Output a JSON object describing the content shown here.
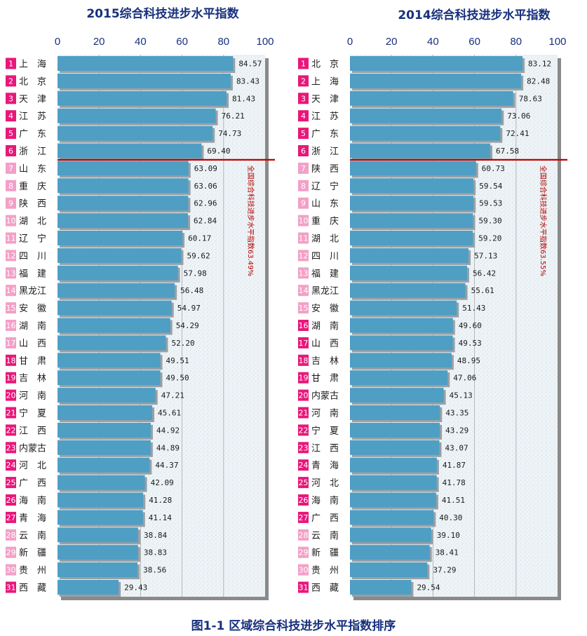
{
  "figure_caption": "图1-1  区域综合科技进步水平指数排序",
  "chart_data": [
    {
      "type": "bar",
      "title": "2015综合科技进步水平指数",
      "xlim": [
        0,
        100
      ],
      "ticks": [
        0,
        20,
        40,
        60,
        80,
        100
      ],
      "ranks": [
        1,
        2,
        3,
        4,
        5,
        6,
        7,
        8,
        9,
        10,
        11,
        12,
        13,
        14,
        15,
        16,
        17,
        18,
        19,
        20,
        21,
        22,
        23,
        24,
        25,
        26,
        27,
        28,
        29,
        30,
        31
      ],
      "categories": [
        "上　海",
        "北　京",
        "天　津",
        "江　苏",
        "广　东",
        "浙　江",
        "山　东",
        "重　庆",
        "陕　西",
        "湖　北",
        "辽　宁",
        "四　川",
        "福　建",
        "黑龙江",
        "安　徽",
        "湖　南",
        "山　西",
        "甘　肃",
        "吉　林",
        "河　南",
        "宁　夏",
        "江　西",
        "内蒙古",
        "河　北",
        "广　西",
        "海　南",
        "青　海",
        "云　南",
        "新　疆",
        "贵　州",
        "西　藏"
      ],
      "values": [
        84.57,
        83.43,
        81.43,
        76.21,
        74.73,
        69.4,
        63.09,
        63.06,
        62.96,
        62.84,
        60.17,
        59.62,
        57.98,
        56.48,
        54.97,
        54.29,
        52.2,
        49.51,
        49.5,
        47.21,
        45.61,
        44.92,
        44.89,
        44.37,
        42.09,
        41.28,
        41.14,
        38.84,
        38.83,
        38.56,
        29.43
      ],
      "value_labels": [
        "84.57",
        "83.43",
        "81.43",
        "76.21",
        "74.73",
        "69.40",
        "63.09",
        "63.06",
        "62.96",
        "62.84",
        "60.17",
        "59.62",
        "57.98",
        "56.48",
        "54.97",
        "54.29",
        "52.20",
        "49.51",
        "49.50",
        "47.21",
        "45.61",
        "44.92",
        "44.89",
        "44.37",
        "42.09",
        "41.28",
        "41.14",
        "38.84",
        "38.83",
        "38.56",
        "29.43"
      ],
      "badge_colors": [
        "#e8177a",
        "#e8177a",
        "#e8177a",
        "#e8177a",
        "#e8177a",
        "#e8177a",
        "#f3a0c8",
        "#f3a0c8",
        "#f3a0c8",
        "#f3a0c8",
        "#f3a0c8",
        "#f3a0c8",
        "#f3a0c8",
        "#f3a0c8",
        "#f3a0c8",
        "#f3a0c8",
        "#f3a0c8",
        "#e8177a",
        "#e8177a",
        "#e8177a",
        "#e8177a",
        "#e8177a",
        "#e8177a",
        "#e8177a",
        "#e8177a",
        "#e8177a",
        "#e8177a",
        "#f3a0c8",
        "#f3a0c8",
        "#f3a0c8",
        "#e8177a"
      ],
      "threshold_after_rank": 6,
      "annotation": "全国综合科技进步水平指数63.49%",
      "grid": true,
      "bar_color": "#4f9ec4"
    },
    {
      "type": "bar",
      "title": "2014综合科技进步水平指数",
      "xlim": [
        0,
        100
      ],
      "ticks": [
        0,
        20,
        40,
        60,
        80,
        100
      ],
      "ranks": [
        1,
        2,
        3,
        4,
        5,
        6,
        7,
        8,
        9,
        10,
        11,
        12,
        13,
        14,
        15,
        16,
        17,
        18,
        19,
        20,
        21,
        22,
        23,
        24,
        25,
        26,
        27,
        28,
        29,
        30,
        31
      ],
      "categories": [
        "北　京",
        "上　海",
        "天　津",
        "江　苏",
        "广　东",
        "浙　江",
        "陕　西",
        "辽　宁",
        "山　东",
        "重　庆",
        "湖　北",
        "四　川",
        "福　建",
        "黑龙江",
        "安　徽",
        "湖　南",
        "山　西",
        "吉　林",
        "甘　肃",
        "内蒙古",
        "河　南",
        "宁　夏",
        "江　西",
        "青　海",
        "河　北",
        "海　南",
        "广　西",
        "云　南",
        "新　疆",
        "贵　州",
        "西　藏"
      ],
      "values": [
        83.12,
        82.48,
        78.63,
        73.06,
        72.41,
        67.58,
        60.73,
        59.54,
        59.53,
        59.3,
        59.2,
        57.13,
        56.42,
        55.61,
        51.43,
        49.6,
        49.53,
        48.95,
        47.06,
        45.13,
        43.35,
        43.29,
        43.07,
        41.87,
        41.78,
        41.51,
        40.3,
        39.1,
        38.41,
        37.29,
        29.54
      ],
      "value_labels": [
        "83.12",
        "82.48",
        "78.63",
        "73.06",
        "72.41",
        "67.58",
        "60.73",
        "59.54",
        "59.53",
        "59.30",
        "59.20",
        "57.13",
        "56.42",
        "55.61",
        "51.43",
        "49.60",
        "49.53",
        "48.95",
        "47.06",
        "45.13",
        "43.35",
        "43.29",
        "43.07",
        "41.87",
        "41.78",
        "41.51",
        "40.30",
        "39.10",
        "38.41",
        "37.29",
        "29.54"
      ],
      "badge_colors": [
        "#e8177a",
        "#e8177a",
        "#e8177a",
        "#e8177a",
        "#e8177a",
        "#e8177a",
        "#f3a0c8",
        "#f3a0c8",
        "#f3a0c8",
        "#f3a0c8",
        "#f3a0c8",
        "#f3a0c8",
        "#f3a0c8",
        "#f3a0c8",
        "#f3a0c8",
        "#e8177a",
        "#e8177a",
        "#e8177a",
        "#e8177a",
        "#e8177a",
        "#e8177a",
        "#e8177a",
        "#e8177a",
        "#e8177a",
        "#e8177a",
        "#e8177a",
        "#e8177a",
        "#f3a0c8",
        "#f3a0c8",
        "#f3a0c8",
        "#e8177a"
      ],
      "threshold_after_rank": 6,
      "annotation": "全国综合科技进步水平指数63.55%",
      "grid": true,
      "bar_color": "#4f9ec4"
    }
  ]
}
